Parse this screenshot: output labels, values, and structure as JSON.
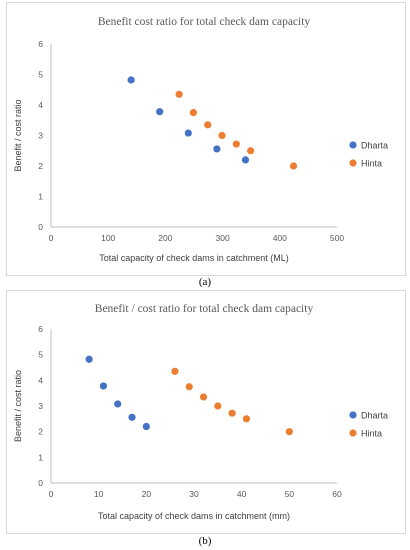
{
  "colors": {
    "Dharta": "#4472c4",
    "Hinta": "#ed7d31"
  },
  "chart_data": [
    {
      "type": "scatter",
      "title": "Benefit cost ratio for total check dam capacity",
      "xlabel": "Total capacity of check dams in catchment (ML)",
      "ylabel": "Benefit / cost ratio",
      "xlim": [
        0,
        500
      ],
      "ylim": [
        0,
        6
      ],
      "xticks": [
        0,
        100,
        200,
        300,
        400,
        500
      ],
      "yticks": [
        0,
        1,
        2,
        3,
        4,
        5,
        6
      ],
      "grid": false,
      "legend": "right",
      "caption": "(a)",
      "series": [
        {
          "name": "Dharta",
          "x": [
            140,
            190,
            240,
            290,
            340
          ],
          "y": [
            4.82,
            3.78,
            3.08,
            2.56,
            2.2
          ]
        },
        {
          "name": "Hinta",
          "x": [
            224,
            249,
            274,
            299,
            324,
            349,
            424
          ],
          "y": [
            4.35,
            3.75,
            3.35,
            3.0,
            2.72,
            2.5,
            2.0
          ]
        }
      ]
    },
    {
      "type": "scatter",
      "title": "Benefit / cost ratio for total check dam capacity",
      "xlabel": "Total capacity of check dams in catchment (mm)",
      "ylabel": "Benefit / cost ratio",
      "xlim": [
        0,
        60
      ],
      "ylim": [
        0,
        6
      ],
      "xticks": [
        0,
        10,
        20,
        30,
        40,
        50,
        60
      ],
      "yticks": [
        0,
        1,
        2,
        3,
        4,
        5,
        6
      ],
      "grid": false,
      "legend": "right",
      "caption": "(b)",
      "series": [
        {
          "name": "Dharta",
          "x": [
            8,
            11,
            14,
            17,
            20
          ],
          "y": [
            4.82,
            3.78,
            3.08,
            2.56,
            2.2
          ]
        },
        {
          "name": "Hinta",
          "x": [
            26,
            29,
            32,
            35,
            38,
            41,
            50
          ],
          "y": [
            4.35,
            3.75,
            3.35,
            3.0,
            2.72,
            2.5,
            2.0
          ]
        }
      ]
    }
  ]
}
